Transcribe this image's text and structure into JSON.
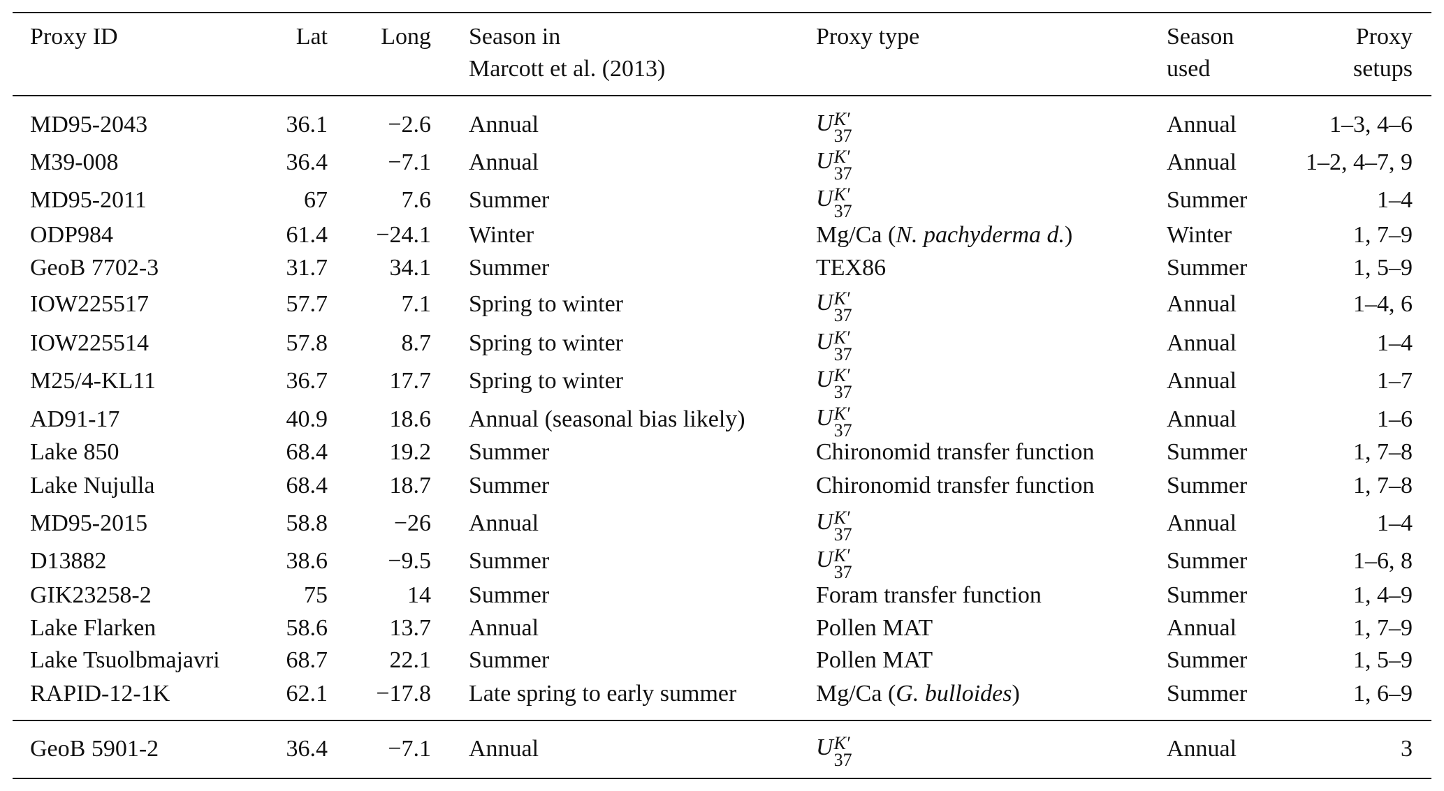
{
  "table": {
    "header": [
      "Proxy ID",
      "Lat",
      "Long",
      [
        "Season in",
        "Marcott et al. (2013)"
      ],
      "Proxy type",
      [
        "Season",
        "used"
      ],
      [
        "Proxy",
        "setups"
      ]
    ],
    "rows": [
      [
        "MD95-2043",
        "36.1",
        "−2.6",
        "Annual",
        {
          "text": "U",
          "sup": "K′",
          "sub": "37"
        },
        "Annual",
        "1–3, 4–6"
      ],
      [
        "M39-008",
        "36.4",
        "−7.1",
        "Annual",
        {
          "text": "U",
          "sup": "K′",
          "sub": "37"
        },
        "Annual",
        "1–2, 4–7, 9"
      ],
      [
        "MD95-2011",
        "67",
        "7.6",
        "Summer",
        {
          "text": "U",
          "sup": "K′",
          "sub": "37"
        },
        "Summer",
        "1–4"
      ],
      [
        "ODP984",
        "61.4",
        "−24.1",
        "Winter",
        {
          "before": "Mg/Ca (",
          "italic": "N. pachyderma d.",
          "after": ")"
        },
        "Winter",
        "1, 7–9"
      ],
      [
        "GeoB 7702-3",
        "31.7",
        "34.1",
        "Summer",
        "TEX86",
        "Summer",
        "1, 5–9"
      ],
      [
        "IOW225517",
        "57.7",
        "7.1",
        "Spring to winter",
        {
          "text": "U",
          "sup": "K′",
          "sub": "37"
        },
        "Annual",
        "1–4, 6"
      ],
      [
        "IOW225514",
        "57.8",
        "8.7",
        "Spring to winter",
        {
          "text": "U",
          "sup": "K′",
          "sub": "37"
        },
        "Annual",
        "1–4"
      ],
      [
        "M25/4-KL11",
        "36.7",
        "17.7",
        "Spring to winter",
        {
          "text": "U",
          "sup": "K′",
          "sub": "37"
        },
        "Annual",
        "1–7"
      ],
      [
        "AD91-17",
        "40.9",
        "18.6",
        "Annual (seasonal bias likely)",
        {
          "text": "U",
          "sup": "K′",
          "sub": "37"
        },
        "Annual",
        "1–6"
      ],
      [
        "Lake 850",
        "68.4",
        "19.2",
        "Summer",
        "Chironomid transfer function",
        "Summer",
        "1, 7–8"
      ],
      [
        "Lake Nujulla",
        "68.4",
        "18.7",
        "Summer",
        "Chironomid transfer function",
        "Summer",
        "1, 7–8"
      ],
      [
        "MD95-2015",
        "58.8",
        "−26",
        "Annual",
        {
          "text": "U",
          "sup": "K′",
          "sub": "37"
        },
        "Annual",
        "1–4"
      ],
      [
        "D13882",
        "38.6",
        "−9.5",
        "Summer",
        {
          "text": "U",
          "sup": "K′",
          "sub": "37"
        },
        "Summer",
        "1–6, 8"
      ],
      [
        "GIK23258-2",
        "75",
        "14",
        "Summer",
        "Foram transfer function",
        "Summer",
        "1, 4–9"
      ],
      [
        "Lake Flarken",
        "58.6",
        "13.7",
        "Annual",
        "Pollen MAT",
        "Annual",
        "1, 7–9"
      ],
      [
        "Lake Tsuolbmajavri",
        "68.7",
        "22.1",
        "Summer",
        "Pollen MAT",
        "Summer",
        "1, 5–9"
      ],
      [
        "RAPID-12-1K",
        "62.1",
        "−17.8",
        "Late spring to early summer",
        {
          "before": "Mg/Ca (",
          "italic": "G. bulloides",
          "after": ")"
        },
        "Summer",
        "1, 6–9"
      ],
      [
        "GeoB 5901-2",
        "36.4",
        "−7.1",
        "Annual",
        {
          "text": "U",
          "sup": "K′",
          "sub": "37"
        },
        "Annual",
        "3"
      ]
    ]
  }
}
